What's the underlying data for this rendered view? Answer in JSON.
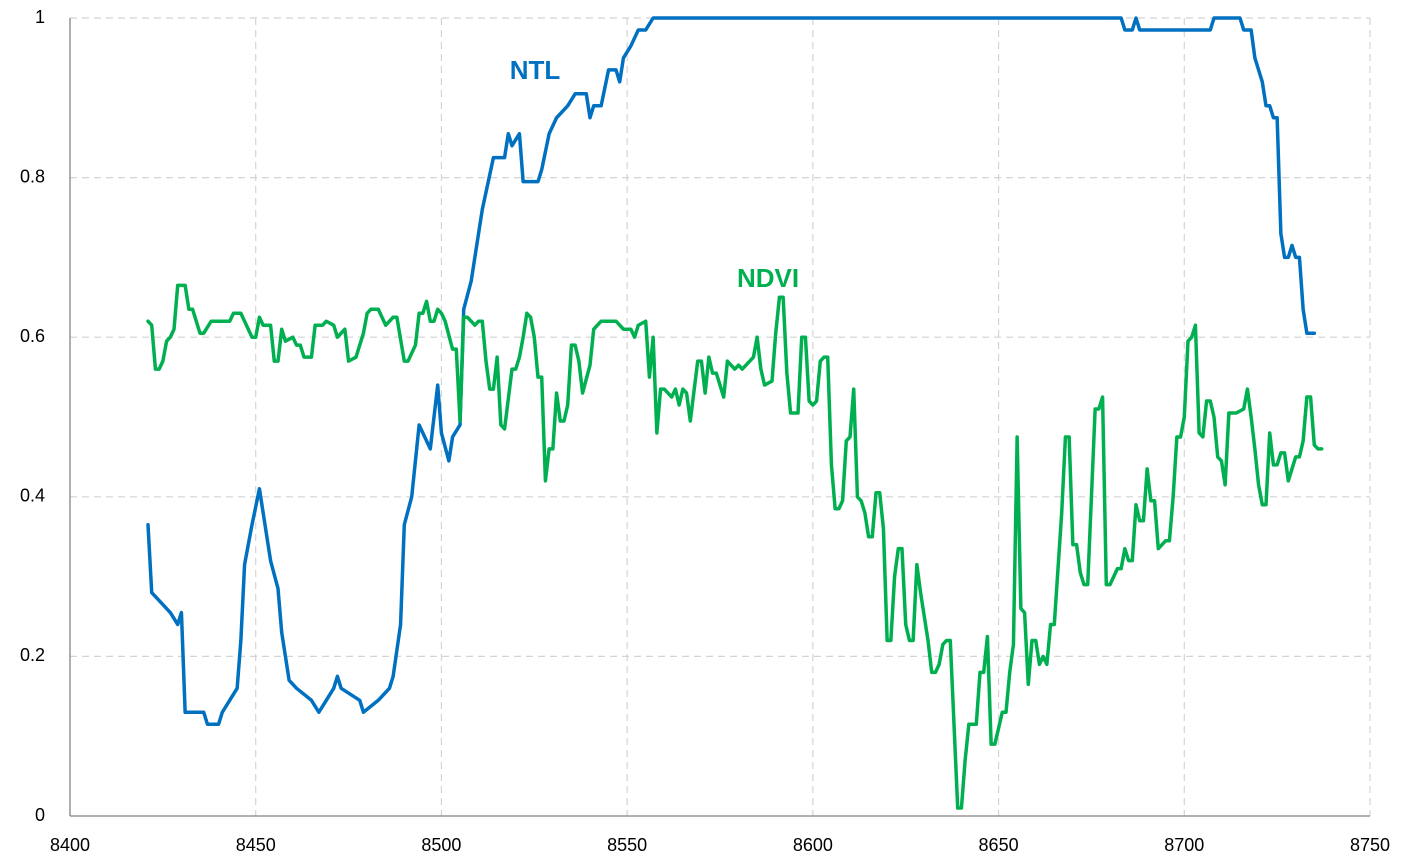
{
  "chart_data": {
    "type": "line",
    "xlim": [
      8400,
      8750
    ],
    "xticks": [
      8400,
      8450,
      8500,
      8550,
      8600,
      8650,
      8700,
      8750
    ],
    "ylim": [
      0,
      1
    ],
    "yticks": [
      0,
      0.2,
      0.4,
      0.6,
      0.8,
      1
    ],
    "grid": true,
    "series": [
      {
        "name": "NTL",
        "color": "#0070c0",
        "x": [
          8421,
          8422,
          8424,
          8427,
          8429,
          8430,
          8431,
          8436,
          8437,
          8440,
          8441,
          8443,
          8445,
          8446,
          8447,
          8449,
          8451,
          8452,
          8454,
          8456,
          8457,
          8459,
          8461,
          8465,
          8467,
          8469,
          8471,
          8472,
          8473,
          8478,
          8479,
          8483,
          8486,
          8487,
          8489,
          8490,
          8492,
          8494,
          8497,
          8499,
          8500,
          8502,
          8503,
          8505,
          8506,
          8508,
          8511,
          8514,
          8517,
          8518,
          8519,
          8521,
          8522,
          8526,
          8527,
          8529,
          8531,
          8534,
          8536,
          8539,
          8540,
          8541,
          8543,
          8545,
          8547,
          8548,
          8549,
          8551,
          8553,
          8555,
          8557,
          8683,
          8684,
          8686,
          8687,
          8688,
          8707,
          8708,
          8715,
          8716,
          8718,
          8719,
          8720,
          8721,
          8722,
          8723,
          8724,
          8725,
          8726,
          8727,
          8728,
          8729,
          8730,
          8731,
          8732,
          8733,
          8735
        ],
        "values": [
          0.365,
          0.28,
          0.27,
          0.255,
          0.24,
          0.255,
          0.13,
          0.13,
          0.115,
          0.115,
          0.13,
          0.145,
          0.16,
          0.22,
          0.315,
          0.365,
          0.41,
          0.38,
          0.32,
          0.285,
          0.23,
          0.17,
          0.16,
          0.145,
          0.13,
          0.145,
          0.16,
          0.175,
          0.16,
          0.145,
          0.13,
          0.145,
          0.16,
          0.175,
          0.24,
          0.365,
          0.4,
          0.49,
          0.46,
          0.54,
          0.48,
          0.445,
          0.475,
          0.49,
          0.635,
          0.67,
          0.76,
          0.825,
          0.825,
          0.855,
          0.84,
          0.855,
          0.795,
          0.795,
          0.81,
          0.855,
          0.875,
          0.89,
          0.905,
          0.905,
          0.875,
          0.89,
          0.89,
          0.935,
          0.935,
          0.92,
          0.95,
          0.965,
          0.985,
          0.985,
          1,
          1,
          0.985,
          0.985,
          1,
          0.985,
          0.985,
          1,
          1,
          0.985,
          0.985,
          0.95,
          0.935,
          0.92,
          0.89,
          0.89,
          0.875,
          0.875,
          0.73,
          0.7,
          0.7,
          0.715,
          0.7,
          0.7,
          0.635,
          0.605,
          0.605
        ]
      },
      {
        "name": "NDVI",
        "color": "#00b050",
        "x": [
          8421,
          8422,
          8423,
          8424,
          8425,
          8426,
          8427,
          8428,
          8429,
          8431,
          8432,
          8433,
          8435,
          8436,
          8438,
          8440,
          8443,
          8444,
          8446,
          8447,
          8449,
          8450,
          8451,
          8452,
          8454,
          8455,
          8456,
          8457,
          8458,
          8460,
          8461,
          8462,
          8463,
          8465,
          8466,
          8468,
          8469,
          8471,
          8472,
          8474,
          8475,
          8477,
          8478,
          8479,
          8480,
          8481,
          8483,
          8485,
          8487,
          8488,
          8490,
          8491,
          8493,
          8494,
          8495,
          8496,
          8497,
          8498,
          8499,
          8500,
          8501,
          8503,
          8504,
          8505,
          8506,
          8507,
          8509,
          8510,
          8511,
          8512,
          8513,
          8514,
          8515,
          8516,
          8517,
          8519,
          8520,
          8521,
          8522,
          8523,
          8524,
          8525,
          8526,
          8527,
          8528,
          8529,
          8530,
          8531,
          8532,
          8533,
          8534,
          8535,
          8536,
          8537,
          8538,
          8540,
          8541,
          8542,
          8543,
          8545,
          8547,
          8549,
          8551,
          8552,
          8553,
          8555,
          8556,
          8557,
          8558,
          8559,
          8560,
          8561,
          8562,
          8563,
          8564,
          8565,
          8566,
          8567,
          8569,
          8570,
          8571,
          8572,
          8573,
          8574,
          8575,
          8576,
          8577,
          8578,
          8579,
          8580,
          8581,
          8583,
          8584,
          8585,
          8586,
          8587,
          8589,
          8590,
          8591,
          8592,
          8593,
          8594,
          8596,
          8597,
          8598,
          8599,
          8600,
          8601,
          8602,
          8603,
          8604,
          8605,
          8606,
          8607,
          8608,
          8609,
          8610,
          8611,
          8612,
          8613,
          8614,
          8615,
          8616,
          8617,
          8618,
          8619,
          8620,
          8621,
          8622,
          8623,
          8624,
          8625,
          8626,
          8627,
          8628,
          8629,
          8631,
          8632,
          8633,
          8634,
          8635,
          8636,
          8637,
          8639,
          8640,
          8641,
          8642,
          8643,
          8644,
          8645,
          8646,
          8647,
          8648,
          8649,
          8650,
          8651,
          8652,
          8653,
          8654,
          8655,
          8656,
          8657,
          8658,
          8659,
          8660,
          8661,
          8662,
          8663,
          8664,
          8665,
          8667,
          8668,
          8669,
          8670,
          8671,
          8672,
          8673,
          8674,
          8675,
          8676,
          8677,
          8678,
          8679,
          8680,
          8681,
          8682,
          8683,
          8684,
          8685,
          8686,
          8687,
          8688,
          8689,
          8690,
          8691,
          8692,
          8693,
          8695,
          8696,
          8697,
          8698,
          8699,
          8700,
          8701,
          8702,
          8703,
          8704,
          8705,
          8706,
          8707,
          8708,
          8709,
          8710,
          8711,
          8712,
          8713,
          8714,
          8716,
          8717,
          8718,
          8719,
          8720,
          8721,
          8722,
          8723,
          8724,
          8725,
          8726,
          8727,
          8728,
          8730,
          8731,
          8732,
          8733,
          8734,
          8735,
          8736,
          8737
        ],
        "values": [
          0.62,
          0.615,
          0.56,
          0.56,
          0.57,
          0.595,
          0.6,
          0.61,
          0.665,
          0.665,
          0.635,
          0.635,
          0.605,
          0.605,
          0.62,
          0.62,
          0.62,
          0.63,
          0.63,
          0.62,
          0.6,
          0.6,
          0.625,
          0.615,
          0.615,
          0.57,
          0.57,
          0.61,
          0.595,
          0.6,
          0.59,
          0.59,
          0.575,
          0.575,
          0.615,
          0.615,
          0.62,
          0.615,
          0.6,
          0.61,
          0.57,
          0.575,
          0.59,
          0.605,
          0.63,
          0.635,
          0.635,
          0.615,
          0.625,
          0.625,
          0.57,
          0.57,
          0.59,
          0.63,
          0.63,
          0.645,
          0.62,
          0.62,
          0.635,
          0.63,
          0.62,
          0.585,
          0.585,
          0.495,
          0.625,
          0.625,
          0.615,
          0.62,
          0.62,
          0.57,
          0.535,
          0.535,
          0.575,
          0.49,
          0.485,
          0.56,
          0.56,
          0.575,
          0.6,
          0.63,
          0.625,
          0.6,
          0.55,
          0.55,
          0.42,
          0.46,
          0.46,
          0.53,
          0.495,
          0.495,
          0.515,
          0.59,
          0.59,
          0.57,
          0.53,
          0.565,
          0.61,
          0.615,
          0.62,
          0.62,
          0.62,
          0.61,
          0.61,
          0.6,
          0.615,
          0.62,
          0.55,
          0.6,
          0.48,
          0.535,
          0.535,
          0.53,
          0.525,
          0.535,
          0.515,
          0.535,
          0.53,
          0.495,
          0.57,
          0.57,
          0.53,
          0.575,
          0.555,
          0.555,
          0.54,
          0.525,
          0.57,
          0.565,
          0.56,
          0.565,
          0.56,
          0.57,
          0.575,
          0.6,
          0.56,
          0.54,
          0.545,
          0.605,
          0.65,
          0.65,
          0.555,
          0.505,
          0.505,
          0.6,
          0.6,
          0.52,
          0.515,
          0.52,
          0.57,
          0.575,
          0.575,
          0.44,
          0.385,
          0.385,
          0.395,
          0.47,
          0.475,
          0.535,
          0.4,
          0.395,
          0.38,
          0.35,
          0.35,
          0.405,
          0.405,
          0.36,
          0.22,
          0.22,
          0.3,
          0.335,
          0.335,
          0.24,
          0.22,
          0.22,
          0.315,
          0.28,
          0.22,
          0.18,
          0.18,
          0.19,
          0.215,
          0.22,
          0.22,
          0.01,
          0.01,
          0.07,
          0.115,
          0.115,
          0.115,
          0.18,
          0.18,
          0.225,
          0.09,
          0.09,
          0.11,
          0.13,
          0.13,
          0.18,
          0.215,
          0.475,
          0.26,
          0.255,
          0.165,
          0.22,
          0.22,
          0.19,
          0.2,
          0.19,
          0.24,
          0.24,
          0.38,
          0.475,
          0.475,
          0.34,
          0.34,
          0.305,
          0.29,
          0.29,
          0.4,
          0.51,
          0.51,
          0.525,
          0.29,
          0.29,
          0.3,
          0.31,
          0.31,
          0.335,
          0.32,
          0.32,
          0.39,
          0.37,
          0.37,
          0.435,
          0.395,
          0.395,
          0.335,
          0.345,
          0.345,
          0.4,
          0.475,
          0.475,
          0.5,
          0.595,
          0.6,
          0.615,
          0.48,
          0.475,
          0.52,
          0.52,
          0.5,
          0.45,
          0.445,
          0.415,
          0.505,
          0.505,
          0.505,
          0.51,
          0.535,
          0.5,
          0.46,
          0.415,
          0.39,
          0.39,
          0.48,
          0.44,
          0.44,
          0.455,
          0.455,
          0.42,
          0.45,
          0.45,
          0.47,
          0.525,
          0.525,
          0.465,
          0.46,
          0.46
        ]
      }
    ]
  }
}
